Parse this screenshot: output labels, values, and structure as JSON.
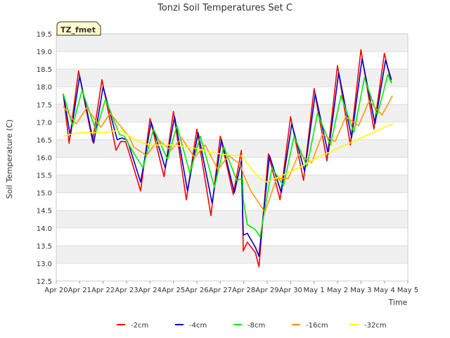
{
  "chart_data": {
    "type": "line",
    "title": "Tonzi Soil Temperatures Set C",
    "xlabel": "Time",
    "ylabel": "Soil Temperature (C)",
    "ylim": [
      12.5,
      19.5
    ],
    "xlim": [
      0,
      15
    ],
    "grid": true,
    "legend_position": "bottom",
    "site_label": "TZ_fmet",
    "x_ticks": [
      {
        "value": 0,
        "label": "Apr 20"
      },
      {
        "value": 1,
        "label": "Apr 21"
      },
      {
        "value": 2,
        "label": "Apr 22"
      },
      {
        "value": 3,
        "label": "Apr 23"
      },
      {
        "value": 4,
        "label": "Apr 24"
      },
      {
        "value": 5,
        "label": "Apr 25"
      },
      {
        "value": 6,
        "label": "Apr 26"
      },
      {
        "value": 7,
        "label": "Apr 27"
      },
      {
        "value": 8,
        "label": "Apr 28"
      },
      {
        "value": 9,
        "label": "Apr 29"
      },
      {
        "value": 10,
        "label": "Apr 30"
      },
      {
        "value": 11,
        "label": "May 1"
      },
      {
        "value": 12,
        "label": "May 2"
      },
      {
        "value": 13,
        "label": "May 3"
      },
      {
        "value": 14,
        "label": "May 4"
      },
      {
        "value": 15,
        "label": "May 5"
      }
    ],
    "y_ticks": [
      {
        "value": 12.5,
        "label": "12.5"
      },
      {
        "value": 13.0,
        "label": "13.0"
      },
      {
        "value": 13.5,
        "label": "13.5"
      },
      {
        "value": 14.0,
        "label": "14.0"
      },
      {
        "value": 14.5,
        "label": "14.5"
      },
      {
        "value": 15.0,
        "label": "15.0"
      },
      {
        "value": 15.5,
        "label": "15.5"
      },
      {
        "value": 16.0,
        "label": "16.0"
      },
      {
        "value": 16.5,
        "label": "16.5"
      },
      {
        "value": 17.0,
        "label": "17.0"
      },
      {
        "value": 17.5,
        "label": "17.5"
      },
      {
        "value": 18.0,
        "label": "18.0"
      },
      {
        "value": 18.5,
        "label": "18.5"
      },
      {
        "value": 19.0,
        "label": "19.0"
      },
      {
        "value": 19.5,
        "label": "19.5"
      }
    ],
    "series": [
      {
        "name": "-2cm",
        "color": "#ff0000",
        "points": [
          [
            0.3,
            17.8
          ],
          [
            0.55,
            16.4
          ],
          [
            0.95,
            18.45
          ],
          [
            1.55,
            16.45
          ],
          [
            1.95,
            18.2
          ],
          [
            2.55,
            16.2
          ],
          [
            2.75,
            16.45
          ],
          [
            2.95,
            16.45
          ],
          [
            3.1,
            16.15
          ],
          [
            3.6,
            15.05
          ],
          [
            4.0,
            17.1
          ],
          [
            4.6,
            15.45
          ],
          [
            5.0,
            17.3
          ],
          [
            5.55,
            14.8
          ],
          [
            6.0,
            16.8
          ],
          [
            6.6,
            14.35
          ],
          [
            7.0,
            16.6
          ],
          [
            7.55,
            14.95
          ],
          [
            7.9,
            16.2
          ],
          [
            7.98,
            13.35
          ],
          [
            8.15,
            13.6
          ],
          [
            8.5,
            13.3
          ],
          [
            8.65,
            12.9
          ],
          [
            9.05,
            16.1
          ],
          [
            9.55,
            14.8
          ],
          [
            10.0,
            17.15
          ],
          [
            10.55,
            15.35
          ],
          [
            11.0,
            17.95
          ],
          [
            11.55,
            15.9
          ],
          [
            12.0,
            18.6
          ],
          [
            12.55,
            16.35
          ],
          [
            13.0,
            19.05
          ],
          [
            13.55,
            16.8
          ],
          [
            14.0,
            18.95
          ],
          [
            14.3,
            18.1
          ]
        ]
      },
      {
        "name": "-4cm",
        "color": "#0000cc",
        "points": [
          [
            0.3,
            17.8
          ],
          [
            0.6,
            16.6
          ],
          [
            1.0,
            18.3
          ],
          [
            1.6,
            16.4
          ],
          [
            2.0,
            18.0
          ],
          [
            2.6,
            16.5
          ],
          [
            2.8,
            16.55
          ],
          [
            3.0,
            16.5
          ],
          [
            3.1,
            16.35
          ],
          [
            3.6,
            15.3
          ],
          [
            4.05,
            17.0
          ],
          [
            4.65,
            15.7
          ],
          [
            5.05,
            17.15
          ],
          [
            5.6,
            15.05
          ],
          [
            6.05,
            16.7
          ],
          [
            6.65,
            14.7
          ],
          [
            7.05,
            16.5
          ],
          [
            7.6,
            15.0
          ],
          [
            7.9,
            15.9
          ],
          [
            7.98,
            13.8
          ],
          [
            8.15,
            13.85
          ],
          [
            8.5,
            13.45
          ],
          [
            8.65,
            13.2
          ],
          [
            9.1,
            16.05
          ],
          [
            9.6,
            15.0
          ],
          [
            10.05,
            16.95
          ],
          [
            10.6,
            15.6
          ],
          [
            11.05,
            17.8
          ],
          [
            11.6,
            16.1
          ],
          [
            12.05,
            18.4
          ],
          [
            12.6,
            16.55
          ],
          [
            13.05,
            18.8
          ],
          [
            13.6,
            16.95
          ],
          [
            14.05,
            18.75
          ],
          [
            14.3,
            18.2
          ]
        ]
      },
      {
        "name": "-8cm",
        "color": "#00ee00",
        "points": [
          [
            0.3,
            17.8
          ],
          [
            0.7,
            16.9
          ],
          [
            1.1,
            17.9
          ],
          [
            1.7,
            16.75
          ],
          [
            2.1,
            17.65
          ],
          [
            2.7,
            16.65
          ],
          [
            2.9,
            16.6
          ],
          [
            3.15,
            16.3
          ],
          [
            3.7,
            15.7
          ],
          [
            4.15,
            16.8
          ],
          [
            4.75,
            15.95
          ],
          [
            5.15,
            16.9
          ],
          [
            5.7,
            15.55
          ],
          [
            6.15,
            16.6
          ],
          [
            6.75,
            15.15
          ],
          [
            7.15,
            16.3
          ],
          [
            7.7,
            15.35
          ],
          [
            7.95,
            15.4
          ],
          [
            7.98,
            14.8
          ],
          [
            8.15,
            14.1
          ],
          [
            8.5,
            13.95
          ],
          [
            8.7,
            13.75
          ],
          [
            9.2,
            15.7
          ],
          [
            9.7,
            15.2
          ],
          [
            10.15,
            16.6
          ],
          [
            10.7,
            15.75
          ],
          [
            11.15,
            17.25
          ],
          [
            11.7,
            16.35
          ],
          [
            12.15,
            17.75
          ],
          [
            12.7,
            16.7
          ],
          [
            13.15,
            18.25
          ],
          [
            13.7,
            17.2
          ],
          [
            14.15,
            18.35
          ],
          [
            14.3,
            18.1
          ]
        ]
      },
      {
        "name": "-16cm",
        "color": "#ff9900",
        "points": [
          [
            0.3,
            17.45
          ],
          [
            0.85,
            16.95
          ],
          [
            1.3,
            17.4
          ],
          [
            1.9,
            16.85
          ],
          [
            2.3,
            17.25
          ],
          [
            2.9,
            16.75
          ],
          [
            3.1,
            16.6
          ],
          [
            3.3,
            16.3
          ],
          [
            3.85,
            16.05
          ],
          [
            4.35,
            16.5
          ],
          [
            4.9,
            16.2
          ],
          [
            5.35,
            16.55
          ],
          [
            5.9,
            16.0
          ],
          [
            6.35,
            16.35
          ],
          [
            6.9,
            15.65
          ],
          [
            7.35,
            16.05
          ],
          [
            7.85,
            15.8
          ],
          [
            8.0,
            15.5
          ],
          [
            8.3,
            15.05
          ],
          [
            8.9,
            14.45
          ],
          [
            9.4,
            15.4
          ],
          [
            9.9,
            15.4
          ],
          [
            10.35,
            16.1
          ],
          [
            10.9,
            15.85
          ],
          [
            11.35,
            16.65
          ],
          [
            11.9,
            16.45
          ],
          [
            12.35,
            17.15
          ],
          [
            12.9,
            16.9
          ],
          [
            13.35,
            17.6
          ],
          [
            13.9,
            17.2
          ],
          [
            14.35,
            17.75
          ]
        ]
      },
      {
        "name": "-32cm",
        "color": "#ffff00",
        "points": [
          [
            0.3,
            16.6
          ],
          [
            0.6,
            16.65
          ],
          [
            1.0,
            16.7
          ],
          [
            1.5,
            16.7
          ],
          [
            2.0,
            16.7
          ],
          [
            2.5,
            16.75
          ],
          [
            2.8,
            16.75
          ],
          [
            3.0,
            16.65
          ],
          [
            3.5,
            16.45
          ],
          [
            4.0,
            16.35
          ],
          [
            4.5,
            16.35
          ],
          [
            5.0,
            16.35
          ],
          [
            5.5,
            16.3
          ],
          [
            6.0,
            16.25
          ],
          [
            6.5,
            16.15
          ],
          [
            7.0,
            16.1
          ],
          [
            7.5,
            16.05
          ],
          [
            7.9,
            16.05
          ],
          [
            8.3,
            15.7
          ],
          [
            8.7,
            15.4
          ],
          [
            9.0,
            15.3
          ],
          [
            9.5,
            15.45
          ],
          [
            10.0,
            15.6
          ],
          [
            10.5,
            15.75
          ],
          [
            11.0,
            15.95
          ],
          [
            11.5,
            16.1
          ],
          [
            12.0,
            16.25
          ],
          [
            12.5,
            16.4
          ],
          [
            13.0,
            16.55
          ],
          [
            13.5,
            16.7
          ],
          [
            14.0,
            16.85
          ],
          [
            14.35,
            16.95
          ]
        ]
      }
    ]
  }
}
